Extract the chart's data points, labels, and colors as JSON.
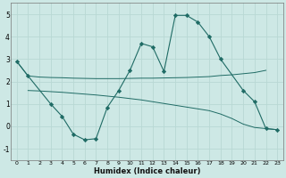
{
  "xlabel": "Humidex (Indice chaleur)",
  "background_color": "#cde8e5",
  "grid_color": "#b8d8d4",
  "line_color": "#1f6b65",
  "xlim": [
    -0.5,
    23.5
  ],
  "ylim": [
    -1.5,
    5.5
  ],
  "yticks": [
    -1,
    0,
    1,
    2,
    3,
    4,
    5
  ],
  "xticks": [
    0,
    1,
    2,
    3,
    4,
    5,
    6,
    7,
    8,
    9,
    10,
    11,
    12,
    13,
    14,
    15,
    16,
    17,
    18,
    19,
    20,
    21,
    22,
    23
  ],
  "line1_x": [
    0,
    1,
    2,
    3,
    4,
    5,
    6,
    7,
    8,
    9,
    10,
    11,
    12,
    13,
    14,
    15,
    16,
    17,
    18,
    19,
    20,
    21,
    22
  ],
  "line1_y": [
    2.9,
    2.25,
    2.2,
    2.18,
    2.17,
    2.15,
    2.14,
    2.13,
    2.13,
    2.13,
    2.14,
    2.15,
    2.15,
    2.16,
    2.17,
    2.18,
    2.2,
    2.22,
    2.27,
    2.3,
    2.35,
    2.4,
    2.5
  ],
  "line2_x": [
    1,
    2,
    3,
    4,
    5,
    6,
    7,
    8,
    9,
    10,
    11,
    12,
    13,
    14,
    15,
    16,
    17,
    18,
    19,
    20,
    21,
    22,
    23
  ],
  "line2_y": [
    1.6,
    1.58,
    1.55,
    1.52,
    1.48,
    1.44,
    1.4,
    1.35,
    1.3,
    1.24,
    1.18,
    1.1,
    1.02,
    0.94,
    0.86,
    0.78,
    0.7,
    0.55,
    0.35,
    0.1,
    -0.05,
    -0.1,
    -0.15
  ],
  "line3_x": [
    0,
    1,
    3,
    4,
    5,
    6,
    7,
    8,
    9,
    10,
    11,
    12,
    13,
    14,
    15,
    16,
    17,
    18,
    20,
    21,
    22,
    23
  ],
  "line3_y": [
    2.9,
    2.25,
    1.0,
    0.45,
    -0.35,
    -0.6,
    -0.55,
    0.85,
    1.6,
    2.5,
    3.7,
    3.55,
    2.45,
    4.95,
    4.95,
    4.65,
    4.0,
    3.0,
    1.6,
    1.1,
    -0.1,
    -0.15
  ]
}
